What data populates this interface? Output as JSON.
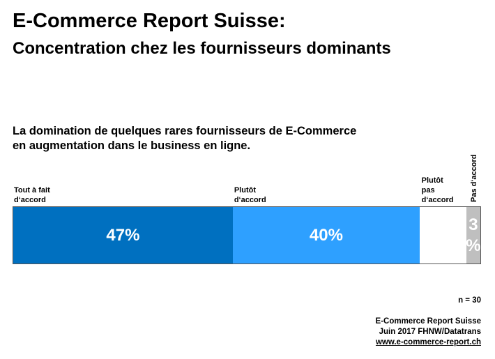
{
  "title": "E-Commerce Report Suisse:",
  "subtitle": "Concentration chez les fournisseurs dominants",
  "chart_data": {
    "type": "bar",
    "orientation": "horizontal-stacked",
    "title": "La domination de quelques rares fournisseurs de E-Commerce en augmentation dans le business en ligne.",
    "title_lines": [
      "La domination de quelques rares fournisseurs de E-Commerce",
      "en augmentation dans le business en ligne."
    ],
    "series": [
      {
        "name": "Tout à fait d‘accord",
        "label_lines": [
          "Tout à fait",
          "d‘accord"
        ],
        "value": 47,
        "data_label": "47%",
        "color": "#0070C0"
      },
      {
        "name": "Plutôt d‘accord",
        "label_lines": [
          "Plutôt",
          "d‘accord"
        ],
        "value": 40,
        "data_label": "40%",
        "color": "#2EA0FF"
      },
      {
        "name": "Plutôt pas d‘accord",
        "label_lines": [
          "Plutôt",
          "pas",
          "d‘accord"
        ],
        "value": 10,
        "data_label": "",
        "color": "#FFFFFF"
      },
      {
        "name": "Pas d‘accord",
        "label_lines": [
          "Pas d‘accord"
        ],
        "value": 3,
        "data_label": "3%",
        "data_label_lines": [
          "3",
          "%"
        ],
        "color": "#BFBFBF"
      }
    ],
    "xlim": [
      0,
      100
    ]
  },
  "footer": {
    "n": "n = 30",
    "line1": "E-Commerce  Report Suisse",
    "line2": "Juin 2017 FHNW/Datatrans",
    "link": "www.e-commerce-report.ch"
  }
}
